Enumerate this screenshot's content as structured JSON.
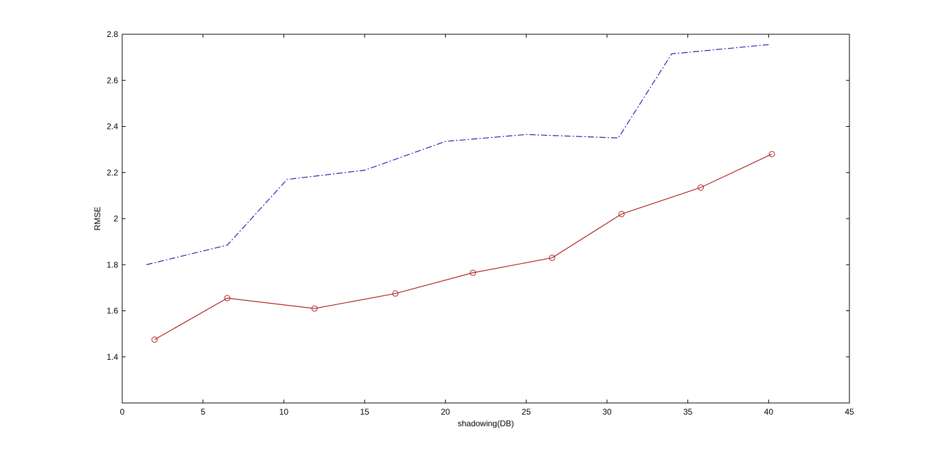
{
  "chart_data": {
    "type": "line",
    "title": "",
    "xlabel": "shadowing(DB)",
    "ylabel": "RMSE",
    "xlim": [
      0,
      45
    ],
    "ylim": [
      1.2,
      2.8
    ],
    "xticks": [
      0,
      5,
      10,
      15,
      20,
      25,
      30,
      35,
      40,
      45
    ],
    "yticks": [
      1.4,
      1.6,
      1.8,
      2,
      2.2,
      2.4,
      2.6,
      2.8
    ],
    "xtick_labels": [
      "0",
      "5",
      "10",
      "15",
      "20",
      "25",
      "30",
      "35",
      "40",
      "45"
    ],
    "ytick_labels": [
      "1.4",
      "1.6",
      "1.8",
      "2",
      "2.2",
      "2.4",
      "2.6",
      "2.8"
    ],
    "grid": false,
    "legend": "none",
    "series": [
      {
        "color": "#1f1fb4",
        "line_style": "dash-dot",
        "marker": "none",
        "x": [
          1.5,
          6.5,
          10.2,
          15.0,
          20.0,
          25.0,
          30.7,
          34.0,
          40.0
        ],
        "y": [
          1.8,
          1.885,
          2.17,
          2.21,
          2.335,
          2.365,
          2.35,
          2.715,
          2.755
        ]
      },
      {
        "color": "#b22222",
        "line_style": "solid",
        "marker": "circle",
        "x": [
          2.0,
          6.5,
          11.9,
          16.9,
          21.7,
          26.6,
          30.9,
          35.8,
          40.2
        ],
        "y": [
          1.475,
          1.655,
          1.61,
          1.675,
          1.765,
          1.83,
          2.02,
          2.135,
          2.28
        ]
      }
    ]
  }
}
